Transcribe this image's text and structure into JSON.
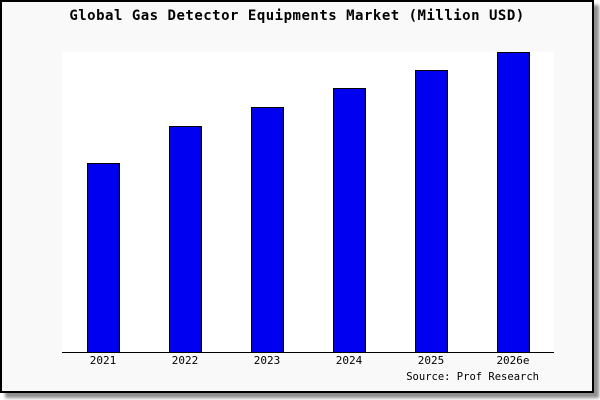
{
  "window": {
    "title": "Global Gas Detector Equipments Market (Million USD)"
  },
  "footer": {
    "source_label": "Source: Prof Research"
  },
  "colors": {
    "bar_fill": "#0000f0",
    "bar_border": "#000000",
    "card_background": "#f9f9f9",
    "plot_background": "#ffffff",
    "frame_border": "#000000",
    "shadow": "#8f8f8f",
    "text": "#000000"
  },
  "chart_data": {
    "type": "bar",
    "title": "Global Gas Detector Equipments Market (Million USD)",
    "categories": [
      "2021",
      "2022",
      "2023",
      "2024",
      "2025",
      "2026e"
    ],
    "values": [
      62.6,
      75.0,
      81.3,
      87.6,
      93.7,
      99.8
    ],
    "xlabel": "",
    "ylabel": "",
    "ylim": [
      0,
      100
    ],
    "y_axis_ticks_visible": false,
    "grid": false,
    "legend": false,
    "source": "Prof Research",
    "value_note_unit": "percent of plot height (no numeric y-axis shown in image)"
  }
}
